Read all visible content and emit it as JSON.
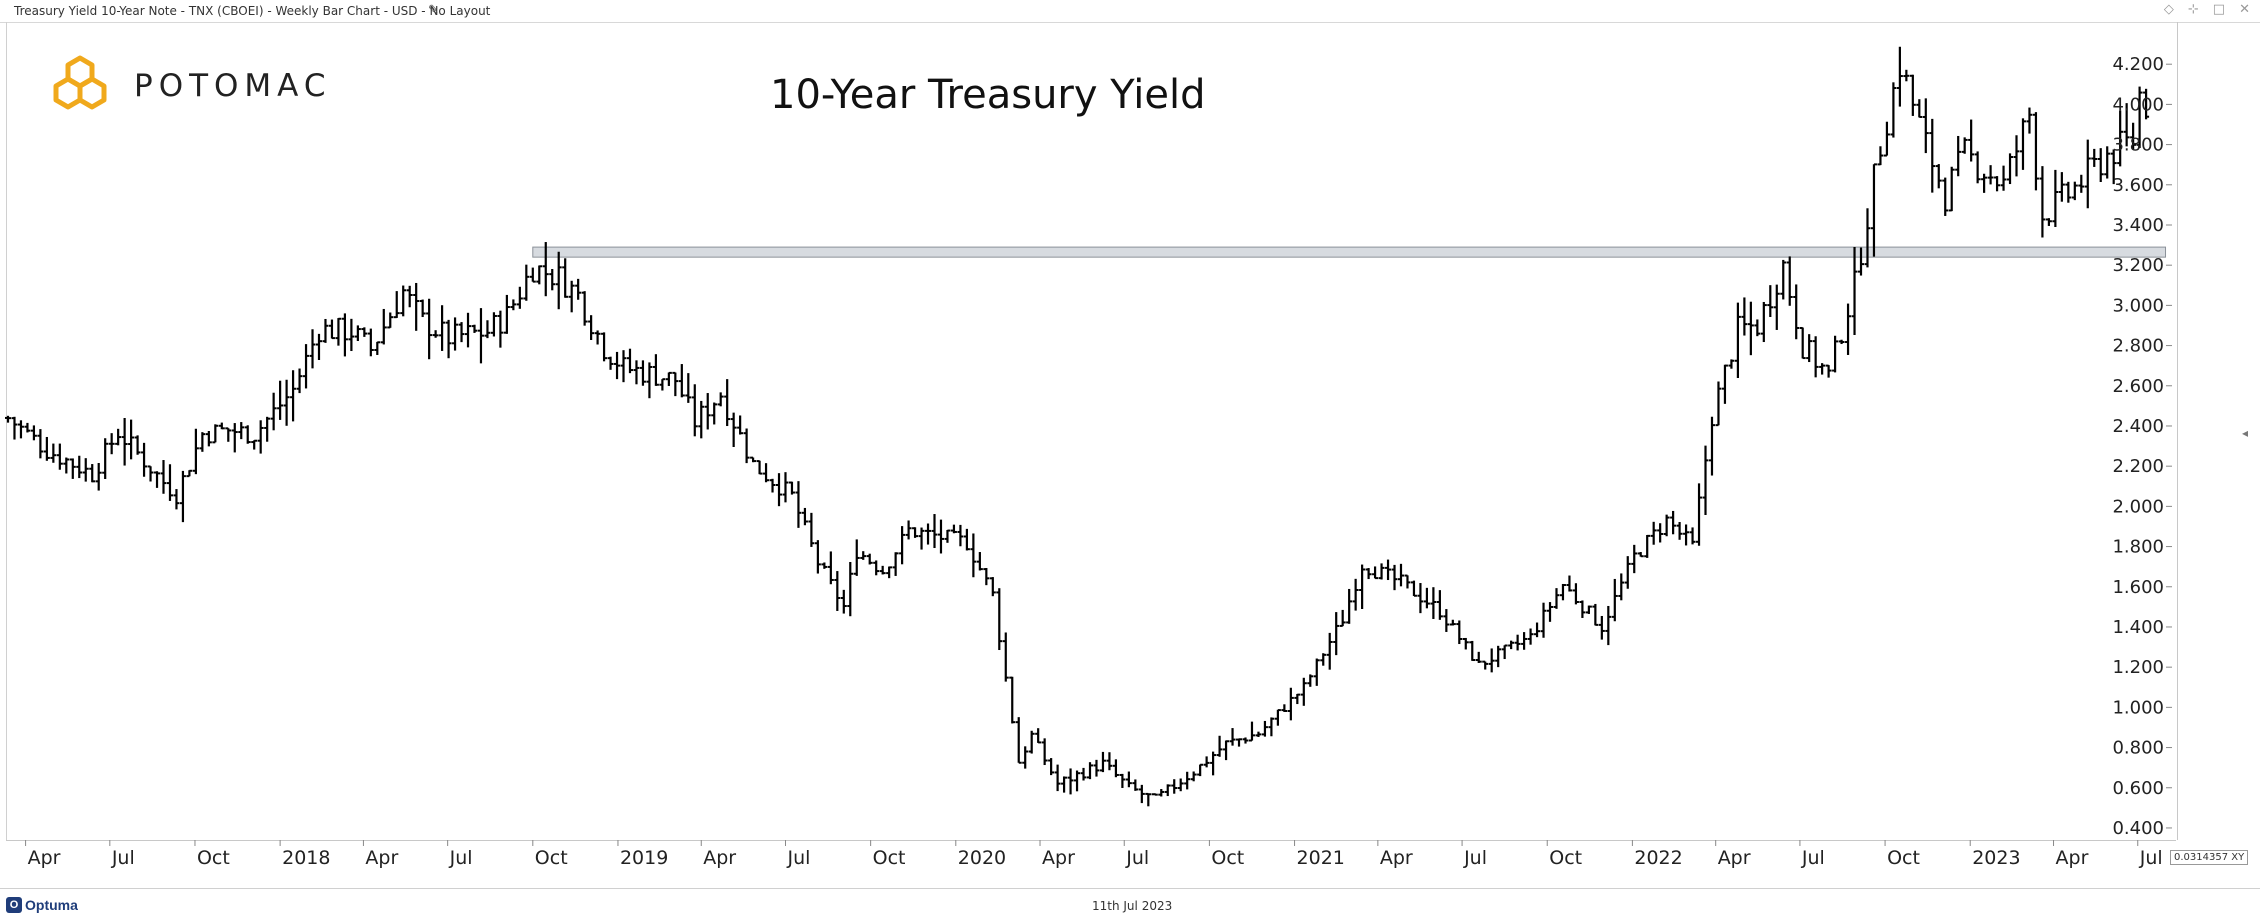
{
  "window": {
    "title": "Treasury Yield 10-Year Note - TNX (CBOEI) - Weekly Bar Chart - USD - No Layout",
    "controls": [
      "◇",
      "⊹",
      "□",
      "✕"
    ]
  },
  "brand": {
    "name": "POTOMAC",
    "logo_icon": "hexagon-cluster-icon",
    "logo_color": "#f0a91c"
  },
  "footer": {
    "date": "11th Jul 2023",
    "app_name": "Optuma",
    "app_color": "#1f3d7a"
  },
  "xy_readout": "0.0314357 XY",
  "chart_data": {
    "type": "bar",
    "subtype": "ohlc",
    "title": "10-Year Treasury Yield",
    "frequency": "weekly",
    "y_axis_position": "right",
    "ylim": [
      0.35,
      4.4
    ],
    "yticks": [
      "0.400",
      "0.600",
      "0.800",
      "1.000",
      "1.200",
      "1.400",
      "1.600",
      "1.800",
      "2.000",
      "2.200",
      "2.400",
      "2.600",
      "2.800",
      "3.000",
      "3.200",
      "3.400",
      "3.600",
      "3.800",
      "4.000",
      "4.200"
    ],
    "xlim": [
      "2017-03-13",
      "2023-08-07"
    ],
    "xticks": [
      {
        "label": "Apr",
        "date": "2017-04-01"
      },
      {
        "label": "Jul",
        "date": "2017-07-01"
      },
      {
        "label": "Oct",
        "date": "2017-10-01"
      },
      {
        "label": "2018",
        "date": "2018-01-01"
      },
      {
        "label": "Apr",
        "date": "2018-04-01"
      },
      {
        "label": "Jul",
        "date": "2018-07-01"
      },
      {
        "label": "Oct",
        "date": "2018-10-01"
      },
      {
        "label": "2019",
        "date": "2019-01-01"
      },
      {
        "label": "Apr",
        "date": "2019-04-01"
      },
      {
        "label": "Jul",
        "date": "2019-07-01"
      },
      {
        "label": "Oct",
        "date": "2019-10-01"
      },
      {
        "label": "2020",
        "date": "2020-01-01"
      },
      {
        "label": "Apr",
        "date": "2020-04-01"
      },
      {
        "label": "Jul",
        "date": "2020-07-01"
      },
      {
        "label": "Oct",
        "date": "2020-10-01"
      },
      {
        "label": "2021",
        "date": "2021-01-01"
      },
      {
        "label": "Apr",
        "date": "2021-04-01"
      },
      {
        "label": "Jul",
        "date": "2021-07-01"
      },
      {
        "label": "Oct",
        "date": "2021-10-01"
      },
      {
        "label": "2022",
        "date": "2022-01-01"
      },
      {
        "label": "Apr",
        "date": "2022-04-01"
      },
      {
        "label": "Jul",
        "date": "2022-07-01"
      },
      {
        "label": "Oct",
        "date": "2022-10-01"
      },
      {
        "label": "2023",
        "date": "2023-01-01"
      },
      {
        "label": "Apr",
        "date": "2023-04-01"
      },
      {
        "label": "Jul",
        "date": "2023-07-01"
      }
    ],
    "band": {
      "y_low": 3.24,
      "y_high": 3.29,
      "x_start": "2018-10-01",
      "x_end": "2023-07-31",
      "color": "#d7dbe0"
    },
    "grid": false,
    "legend": "none",
    "anchors": [
      [
        "2017-03-13",
        2.44
      ],
      [
        "2017-04-24",
        2.28
      ],
      [
        "2017-06-12",
        2.16
      ],
      [
        "2017-07-10",
        2.37
      ],
      [
        "2017-08-28",
        2.12
      ],
      [
        "2017-09-11",
        2.06
      ],
      [
        "2017-10-09",
        2.36
      ],
      [
        "2017-11-06",
        2.38
      ],
      [
        "2017-12-04",
        2.36
      ],
      [
        "2018-01-15",
        2.58
      ],
      [
        "2018-02-12",
        2.88
      ],
      [
        "2018-03-19",
        2.87
      ],
      [
        "2018-04-09",
        2.78
      ],
      [
        "2018-05-14",
        3.07
      ],
      [
        "2018-06-04",
        2.92
      ],
      [
        "2018-07-02",
        2.84
      ],
      [
        "2018-08-13",
        2.87
      ],
      [
        "2018-09-03",
        2.95
      ],
      [
        "2018-10-01",
        3.19
      ],
      [
        "2018-10-29",
        3.14
      ],
      [
        "2018-11-19",
        3.05
      ],
      [
        "2018-12-17",
        2.79
      ],
      [
        "2019-01-07",
        2.69
      ],
      [
        "2019-03-04",
        2.63
      ],
      [
        "2019-03-25",
        2.42
      ],
      [
        "2019-04-22",
        2.56
      ],
      [
        "2019-05-27",
        2.21
      ],
      [
        "2019-07-08",
        2.05
      ],
      [
        "2019-08-05",
        1.72
      ],
      [
        "2019-09-02",
        1.5
      ],
      [
        "2019-09-16",
        1.78
      ],
      [
        "2019-10-14",
        1.68
      ],
      [
        "2019-11-11",
        1.88
      ],
      [
        "2020-01-13",
        1.82
      ],
      [
        "2020-02-10",
        1.56
      ],
      [
        "2020-03-09",
        0.73
      ],
      [
        "2020-03-23",
        0.86
      ],
      [
        "2020-04-20",
        0.62
      ],
      [
        "2020-06-08",
        0.72
      ],
      [
        "2020-07-06",
        0.6
      ],
      [
        "2020-08-03",
        0.54
      ],
      [
        "2020-09-14",
        0.68
      ],
      [
        "2020-10-19",
        0.82
      ],
      [
        "2020-11-23",
        0.87
      ],
      [
        "2021-01-11",
        1.1
      ],
      [
        "2021-02-22",
        1.44
      ],
      [
        "2021-03-15",
        1.71
      ],
      [
        "2021-04-26",
        1.62
      ],
      [
        "2021-06-07",
        1.48
      ],
      [
        "2021-07-19",
        1.21
      ],
      [
        "2021-08-16",
        1.28
      ],
      [
        "2021-09-13",
        1.35
      ],
      [
        "2021-10-18",
        1.61
      ],
      [
        "2021-11-29",
        1.4
      ],
      [
        "2022-01-03",
        1.75
      ],
      [
        "2022-02-07",
        1.93
      ],
      [
        "2022-03-07",
        1.8
      ],
      [
        "2022-03-28",
        2.45
      ],
      [
        "2022-04-25",
        2.88
      ],
      [
        "2022-05-16",
        2.9
      ],
      [
        "2022-06-13",
        3.2
      ],
      [
        "2022-07-04",
        2.8
      ],
      [
        "2022-08-01",
        2.65
      ],
      [
        "2022-08-29",
        3.1
      ],
      [
        "2022-09-26",
        3.8
      ],
      [
        "2022-10-17",
        4.2
      ],
      [
        "2022-11-14",
        3.8
      ],
      [
        "2022-12-05",
        3.55
      ],
      [
        "2022-12-26",
        3.75
      ],
      [
        "2023-02-06",
        3.6
      ],
      [
        "2023-03-06",
        3.95
      ],
      [
        "2023-03-20",
        3.45
      ],
      [
        "2023-04-17",
        3.55
      ],
      [
        "2023-05-29",
        3.75
      ],
      [
        "2023-06-26",
        3.82
      ],
      [
        "2023-07-03",
        4.05
      ],
      [
        "2023-07-10",
        4.0
      ]
    ]
  }
}
